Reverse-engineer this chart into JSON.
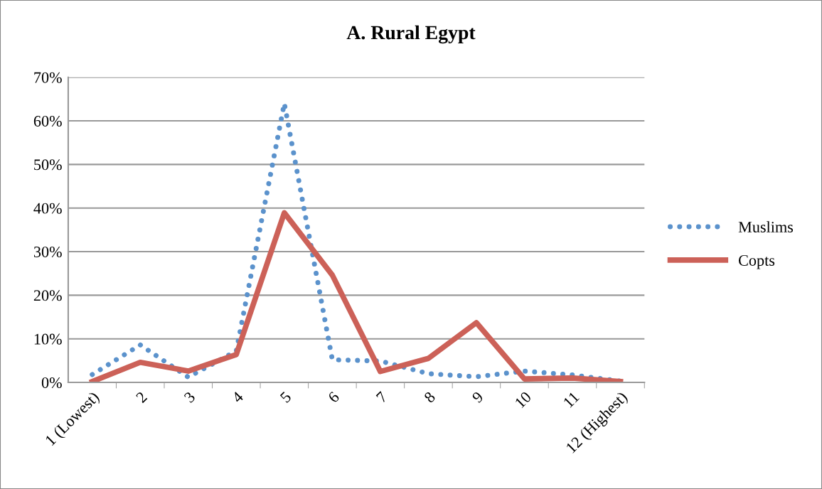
{
  "chart_data": {
    "type": "line",
    "title": "A. Rural Egypt",
    "categories": [
      "1 (Lowest)",
      "2",
      "3",
      "4",
      "5",
      "6",
      "7",
      "8",
      "9",
      "10",
      "11",
      "12 (Highest)"
    ],
    "series": [
      {
        "name": "Muslims",
        "color": "#5b92cc",
        "line_style": "dotted",
        "values": [
          1.8,
          8.6,
          1.2,
          7.2,
          64,
          5.2,
          4.9,
          2.0,
          1.3,
          2.6,
          1.7,
          0.3
        ]
      },
      {
        "name": "Copts",
        "color": "#cc6158",
        "line_style": "solid",
        "values": [
          0.2,
          4.6,
          2.6,
          6.4,
          38.9,
          24.6,
          2.5,
          5.5,
          13.7,
          0.8,
          1.0,
          0.2
        ]
      }
    ],
    "ylim": [
      0,
      70
    ],
    "yticks": [
      {
        "value": 0,
        "label": "0%"
      },
      {
        "value": 10,
        "label": "10%"
      },
      {
        "value": 20,
        "label": "20%"
      },
      {
        "value": 30,
        "label": "30%"
      },
      {
        "value": 40,
        "label": "40%"
      },
      {
        "value": 50,
        "label": "50%"
      },
      {
        "value": 60,
        "label": "60%"
      },
      {
        "value": 70,
        "label": "70%"
      }
    ],
    "grid": "y",
    "legend": "right"
  }
}
